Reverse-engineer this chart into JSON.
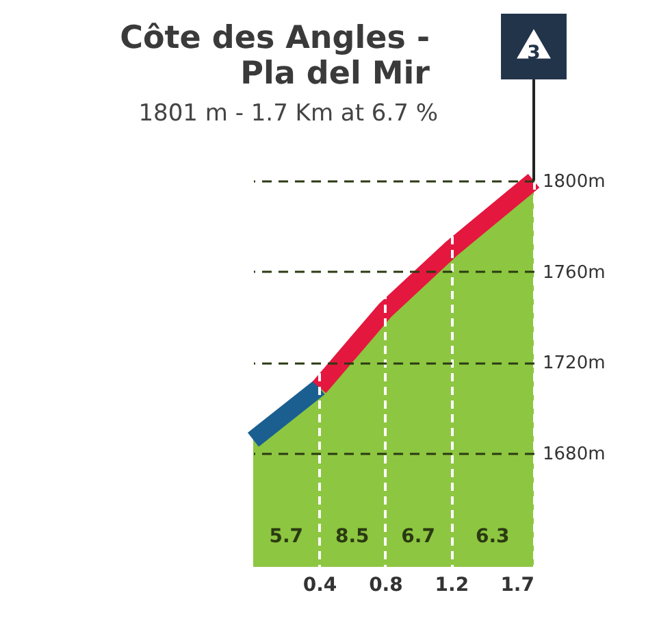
{
  "chart_data": {
    "type": "area",
    "title": "Côte des Angles - Pla del Mir",
    "subtitle": "1801 m - 1.7 Km at 6.7 %",
    "x": [
      0,
      0.4,
      0.8,
      1.2,
      1.7
    ],
    "series": [
      {
        "color": "#8dc641",
        "values": [
          1686,
          1709,
          1743,
          1770,
          1800
        ]
      },
      {
        "type": "line",
        "color": "#1b5f91",
        "x": [
          0,
          0.4
        ],
        "values": [
          1686,
          1709
        ]
      },
      {
        "type": "line",
        "color": "#e4173f",
        "x": [
          0.4,
          0.8,
          1.2,
          1.7
        ],
        "values": [
          1709,
          1743,
          1770,
          1800
        ]
      }
    ],
    "xlim": [
      0,
      1.7
    ],
    "xticks": [
      0.4,
      0.8,
      1.2,
      1.7
    ],
    "ylim": [
      1630,
      1800
    ],
    "yticks": [
      {
        "value": 1680,
        "label": "1680m"
      },
      {
        "value": 1720,
        "label": "1720m"
      },
      {
        "value": 1760,
        "label": "1760m"
      },
      {
        "value": 1800,
        "label": "1800m"
      }
    ],
    "grid": true,
    "annotations": [
      "5.7",
      "8.5",
      "6.7",
      "6.3",
      {
        "text": "3",
        "x": 1.7,
        "y": 1800
      }
    ]
  }
}
